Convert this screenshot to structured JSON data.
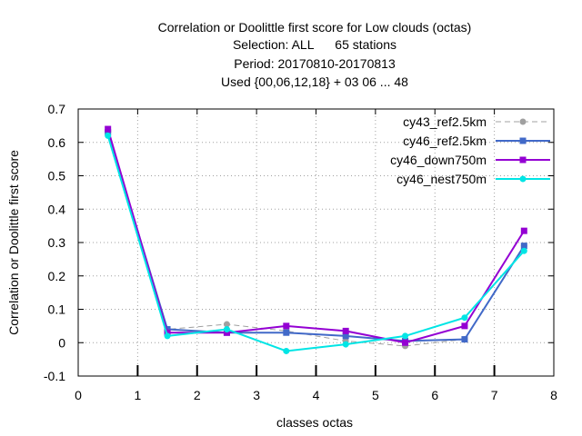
{
  "chart_data": {
    "type": "line",
    "title_lines": [
      "Correlation or Doolittle first score  for Low clouds (octas)",
      "Selection: ALL      65 stations",
      "Period: 20170810-20170813",
      "Used {00,06,12,18} + 03 06 ... 48"
    ],
    "xlabel": "classes octas",
    "ylabel": "Correlation or Doolittle first score",
    "xlim": [
      0,
      8
    ],
    "ylim": [
      -0.1,
      0.7
    ],
    "xticks": [
      "0",
      "1",
      "2",
      "3",
      "4",
      "5",
      "6",
      "7",
      "8"
    ],
    "yticks": [
      "-0.1",
      "0",
      "0.1",
      "0.2",
      "0.3",
      "0.4",
      "0.5",
      "0.6",
      "0.7"
    ],
    "grid": true,
    "legend_position": "top-right",
    "x": [
      0.5,
      1.5,
      2.5,
      3.5,
      4.5,
      5.5,
      6.5,
      7.5
    ],
    "series": [
      {
        "name": "cy43_ref2.5km",
        "color": "#a0a0a0",
        "dashed": true,
        "marker": "circle",
        "values": [
          0.63,
          0.04,
          0.055,
          0.035,
          0.005,
          -0.01,
          0.01,
          0.29
        ]
      },
      {
        "name": "cy46_ref2.5km",
        "color": "#4169c8",
        "dashed": false,
        "marker": "square",
        "values": [
          0.63,
          0.04,
          0.03,
          0.03,
          0.02,
          0.005,
          0.01,
          0.29
        ]
      },
      {
        "name": "cy46_down750m",
        "color": "#9400d3",
        "dashed": false,
        "marker": "square",
        "values": [
          0.64,
          0.03,
          0.03,
          0.05,
          0.035,
          0.0,
          0.05,
          0.335
        ]
      },
      {
        "name": "cy46_nest750m",
        "color": "#00e5e5",
        "dashed": false,
        "marker": "circle",
        "values": [
          0.62,
          0.02,
          0.04,
          -0.025,
          -0.005,
          0.02,
          0.075,
          0.275
        ]
      }
    ]
  }
}
